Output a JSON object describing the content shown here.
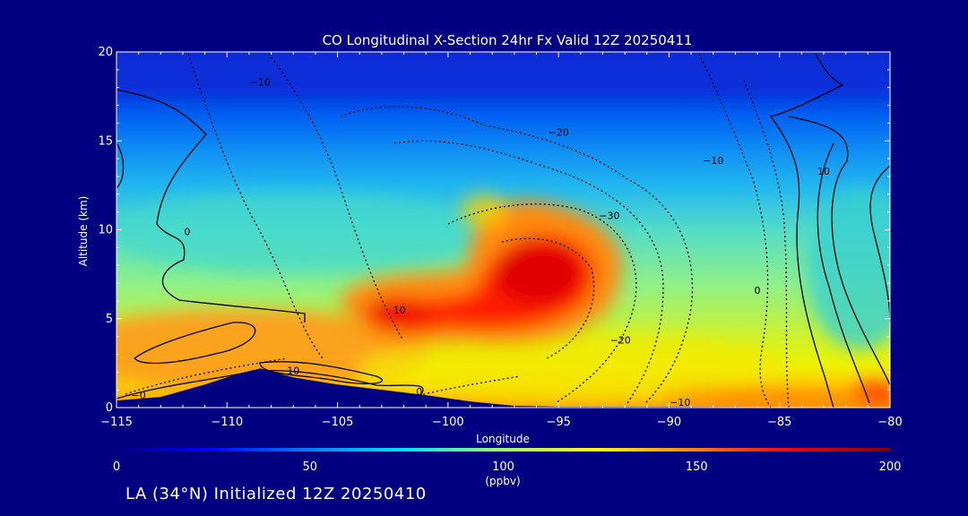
{
  "chart_data": {
    "type": "heatmap",
    "title": "CO Longitudinal X-Section 24hr  Fx Valid 12Z 20250411",
    "xlabel": "Longitude",
    "ylabel": "Altitude (km)",
    "xlim": [
      -115,
      -80
    ],
    "ylim": [
      0,
      20
    ],
    "x_ticks": [
      -115,
      -110,
      -105,
      -100,
      -95,
      -90,
      -85,
      -80
    ],
    "x_tick_labels": [
      "-115",
      "-110",
      "-105",
      "-100",
      "-95",
      "-90",
      "-85",
      "-80"
    ],
    "y_ticks": [
      0,
      5,
      10,
      15,
      20
    ],
    "y_tick_labels": [
      "0",
      "5",
      "10",
      "15",
      "20"
    ],
    "colorbar": {
      "label": "(ppbv)",
      "min": 0,
      "max": 200,
      "ticks": [
        0,
        50,
        100,
        150,
        200
      ],
      "tick_labels": [
        "0",
        "50",
        "100",
        "150",
        "200"
      ]
    },
    "grid": false,
    "co_field": {
      "background_ppbv_by_altitude": [
        [
          0,
          120
        ],
        [
          2,
          125
        ],
        [
          4,
          110
        ],
        [
          6,
          95
        ],
        [
          8,
          85
        ],
        [
          10,
          80
        ],
        [
          12,
          75
        ],
        [
          14,
          60
        ],
        [
          16,
          40
        ],
        [
          18,
          30
        ],
        [
          20,
          25
        ]
      ],
      "plume_max_ppbv": 195,
      "plume_max_location": {
        "lon": -96,
        "alt_km": 7.5
      }
    },
    "contour_labels": [
      {
        "text": "-10",
        "lon": -108.5,
        "alt_km": 18.3
      },
      {
        "text": "-20",
        "lon": -95.0,
        "alt_km": 15.5
      },
      {
        "text": "-10",
        "lon": -88.0,
        "alt_km": 13.9
      },
      {
        "text": "10",
        "lon": -83.0,
        "alt_km": 13.3
      },
      {
        "text": "0",
        "lon": -111.8,
        "alt_km": 9.9
      },
      {
        "text": "-30",
        "lon": -92.7,
        "alt_km": 10.8
      },
      {
        "text": "10",
        "lon": -102.2,
        "alt_km": 5.5
      },
      {
        "text": "0",
        "lon": -86.0,
        "alt_km": 6.6
      },
      {
        "text": "-20",
        "lon": -92.2,
        "alt_km": 3.8
      },
      {
        "text": "10",
        "lon": -107.0,
        "alt_km": 2.1
      },
      {
        "text": "0",
        "lon": -101.3,
        "alt_km": 0.9
      },
      {
        "text": "-0",
        "lon": -114.0,
        "alt_km": 0.7
      },
      {
        "text": "-10",
        "lon": -89.5,
        "alt_km": 0.3
      }
    ],
    "terrain": [
      [
        -115,
        0.4
      ],
      [
        -113,
        0.6
      ],
      [
        -111,
        1.3
      ],
      [
        -109.5,
        1.9
      ],
      [
        -108.5,
        2.2
      ],
      [
        -107,
        1.7
      ],
      [
        -105,
        1.3
      ],
      [
        -103,
        1.0
      ],
      [
        -101,
        0.7
      ],
      [
        -99,
        0.35
      ],
      [
        -97,
        0.1
      ],
      [
        -95,
        0.05
      ],
      [
        -90,
        0.05
      ],
      [
        -85,
        0.02
      ],
      [
        -80,
        0.0
      ]
    ],
    "colors": {
      "background": "#000080",
      "text": "#ffffff",
      "contour": "#000000"
    }
  },
  "footer": {
    "caption": "LA (34°N) Initialized 12Z 20250410"
  }
}
